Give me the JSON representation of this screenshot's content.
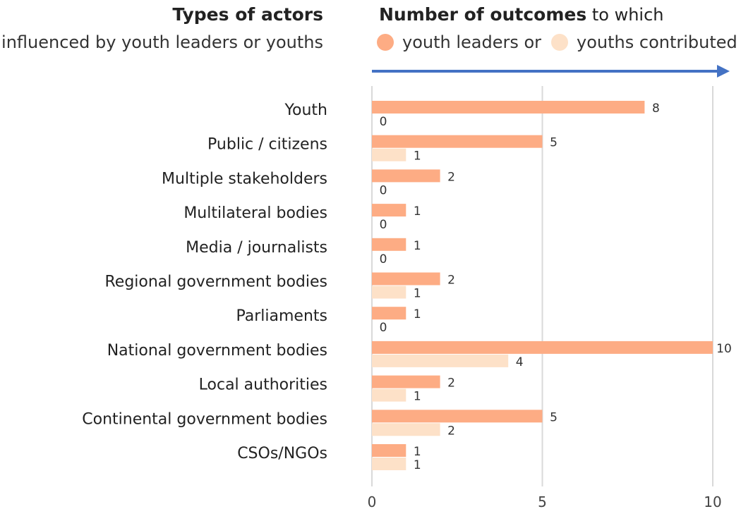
{
  "header": {
    "left_title": "Types of actors",
    "left_subtitle": "influenced by youth leaders or youths",
    "right_title_bold": "Number of outcomes",
    "right_title_rest": " to which"
  },
  "chart_data": {
    "type": "bar",
    "orientation": "horizontal",
    "categories": [
      "Youth",
      "Public / citizens",
      "Multiple stakeholders",
      "Multilateral bodies",
      "Media / journalists",
      "Regional government bodies",
      "Parliaments",
      "National government bodies",
      "Local authorities",
      "Continental government bodies",
      "CSOs/NGOs"
    ],
    "series": [
      {
        "name": "youth leaders or",
        "color": "#fdac84",
        "values": [
          8,
          5,
          2,
          1,
          1,
          2,
          1,
          10,
          2,
          5,
          1
        ]
      },
      {
        "name": "youths contributed",
        "color": "#fde1c8",
        "values": [
          0,
          1,
          0,
          0,
          0,
          1,
          0,
          4,
          1,
          2,
          1
        ]
      }
    ],
    "xlim": [
      0,
      10
    ],
    "xticks": [
      "0",
      "5",
      "10"
    ],
    "grid": true,
    "legend_position": "top",
    "arrow_color": "#4472c4"
  }
}
